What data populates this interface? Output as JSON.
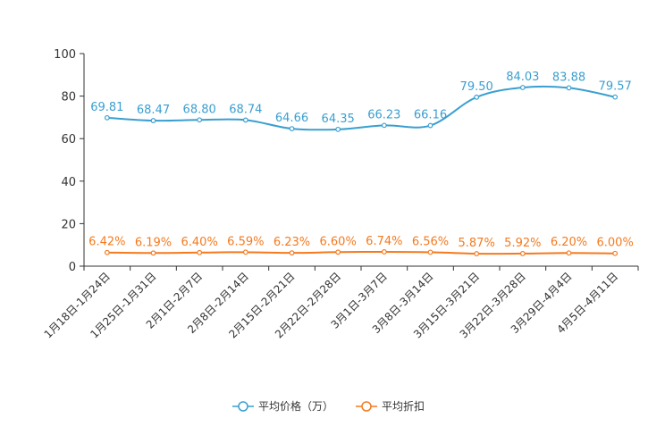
{
  "chart_data": {
    "type": "line",
    "categories": [
      "1月18日-1月24日",
      "1月25日-1月31日",
      "2月1日-2月7日",
      "2月8日-2月14日",
      "2月15日-2月21日",
      "2月22日-2月28日",
      "3月1日-3月7日",
      "3月8日-3月14日",
      "3月15日-3月21日",
      "3月22日-3月28日",
      "3月29日-4月4日",
      "4月5日-4月11日"
    ],
    "ylim": [
      0,
      100
    ],
    "yticks": [
      0,
      20,
      40,
      60,
      80,
      100
    ],
    "series": [
      {
        "name": "平均价格（万）",
        "color": "#3a9fd0",
        "values": [
          69.81,
          68.47,
          68.8,
          68.74,
          64.66,
          64.35,
          66.23,
          66.16,
          79.5,
          84.03,
          83.88,
          79.57
        ],
        "labels": [
          "69.81",
          "68.47",
          "68.80",
          "68.74",
          "64.66",
          "64.35",
          "66.23",
          "66.16",
          "79.50",
          "84.03",
          "83.88",
          "79.57"
        ]
      },
      {
        "name": "平均折扣",
        "color": "#f57a1f",
        "values": [
          6.42,
          6.19,
          6.4,
          6.59,
          6.23,
          6.6,
          6.74,
          6.56,
          5.87,
          5.92,
          6.2,
          6.0
        ],
        "labels": [
          "6.42%",
          "6.19%",
          "6.40%",
          "6.59%",
          "6.23%",
          "6.60%",
          "6.74%",
          "6.56%",
          "5.87%",
          "5.92%",
          "6.20%",
          "6.00%"
        ]
      }
    ],
    "legend_position": "bottom-center"
  }
}
